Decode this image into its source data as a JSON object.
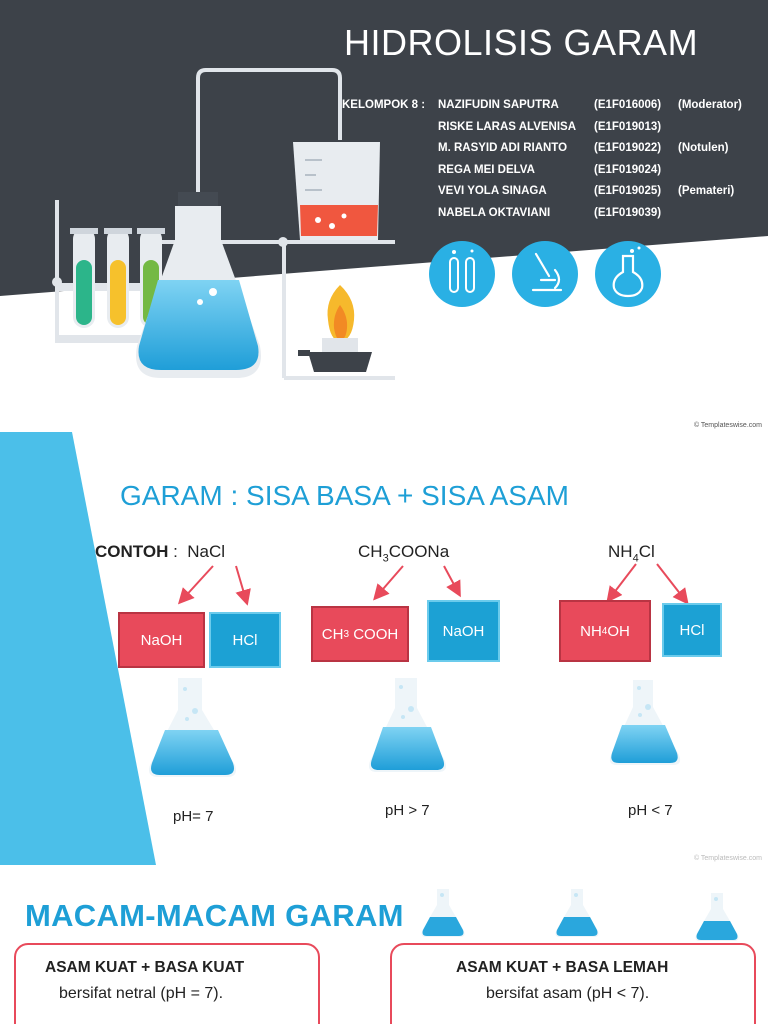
{
  "slide1": {
    "title": "HIDROLISIS GARAM",
    "group_label": "KELOMPOK 8 :",
    "members": [
      {
        "name": "NAZIFUDIN SAPUTRA",
        "id": "(E1F016006)",
        "role": "(Moderator)"
      },
      {
        "name": "RISKE LARAS ALVENISA",
        "id": "(E1F019013)",
        "role": ""
      },
      {
        "name": "M. RASYID ADI RIANTO",
        "id": "(E1F019022)",
        "role": "(Notulen)"
      },
      {
        "name": "REGA MEI  DELVA",
        "id": "(E1F019024)",
        "role": ""
      },
      {
        "name": "VEVI YOLA SINAGA",
        "id": "(E1F019025)",
        "role": "(Pemateri)"
      },
      {
        "name": "NABELA OKTAVIANI",
        "id": "(E1F019039)",
        "role": ""
      }
    ],
    "icons": [
      "test-tubes-icon",
      "microscope-icon",
      "flask-icon"
    ],
    "copyright": "© Templateswise.com",
    "colors": {
      "dark": "#3d4249",
      "icon_circle": "#2ab0e4"
    }
  },
  "slide2": {
    "heading": "GARAM : SISA BASA + SISA ASAM",
    "contoh_label": "CONTOH",
    "examples": [
      {
        "salt": "NaCl",
        "left": {
          "text": "NaOH",
          "color": "red"
        },
        "right": {
          "text": "HCl",
          "color": "blue"
        },
        "ph": "pH= 7"
      },
      {
        "salt": "CH3COONa",
        "left": {
          "text": "CH3 COOH",
          "color": "red"
        },
        "right": {
          "text": "NaOH",
          "color": "blue"
        },
        "ph": "pH > 7"
      },
      {
        "salt": "NH4Cl",
        "left": {
          "text": "NH4OH",
          "color": "red"
        },
        "right": {
          "text": "HCl",
          "color": "blue"
        },
        "ph": "pH < 7"
      }
    ],
    "copyright": "© Templateswise.com",
    "colors": {
      "accent": "#1e9fd6",
      "red": "#e84a5b",
      "blue": "#1ca1d4",
      "side_bar": "#4bbfe9"
    }
  },
  "slide3": {
    "heading": "MACAM-MACAM GARAM",
    "cards": [
      {
        "title": "ASAM KUAT  + BASA KUAT",
        "desc": "bersifat netral (pH = 7)."
      },
      {
        "title": "ASAM KUAT + BASA LEMAH",
        "desc": "bersifat asam (pH < 7)."
      }
    ]
  }
}
